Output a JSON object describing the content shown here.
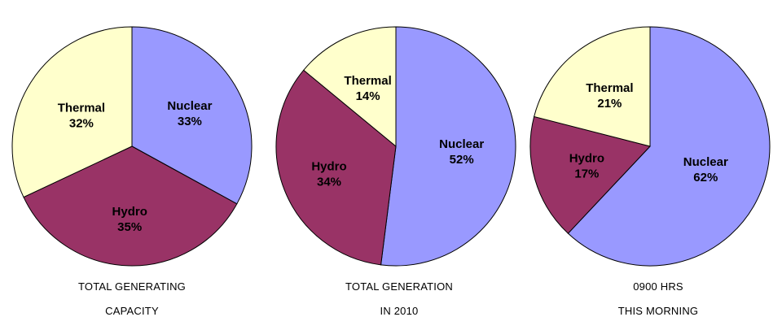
{
  "colors": {
    "Nuclear": "#9999ff",
    "Hydro": "#993366",
    "Thermal": "#ffffcc"
  },
  "chart_data": [
    {
      "type": "pie",
      "caption_line1": "TOTAL GENERATING",
      "caption_line2": "CAPACITY",
      "slices": [
        {
          "label": "Nuclear",
          "value": 33,
          "display": "33%"
        },
        {
          "label": "Hydro",
          "value": 35,
          "display": "35%"
        },
        {
          "label": "Thermal",
          "value": 32,
          "display": "32%"
        }
      ]
    },
    {
      "type": "pie",
      "caption_line1": "TOTAL GENERATION",
      "caption_line2": "IN 2010",
      "slices": [
        {
          "label": "Nuclear",
          "value": 52,
          "display": "52%"
        },
        {
          "label": "Hydro",
          "value": 34,
          "display": "34%"
        },
        {
          "label": "Thermal",
          "value": 14,
          "display": "14%"
        }
      ]
    },
    {
      "type": "pie",
      "caption_line1": "0900 HRS",
      "caption_line2": "THIS MORNING",
      "slices": [
        {
          "label": "Nuclear",
          "value": 62,
          "display": "62%"
        },
        {
          "label": "Hydro",
          "value": 17,
          "display": "17%"
        },
        {
          "label": "Thermal",
          "value": 21,
          "display": "21%"
        }
      ]
    }
  ]
}
